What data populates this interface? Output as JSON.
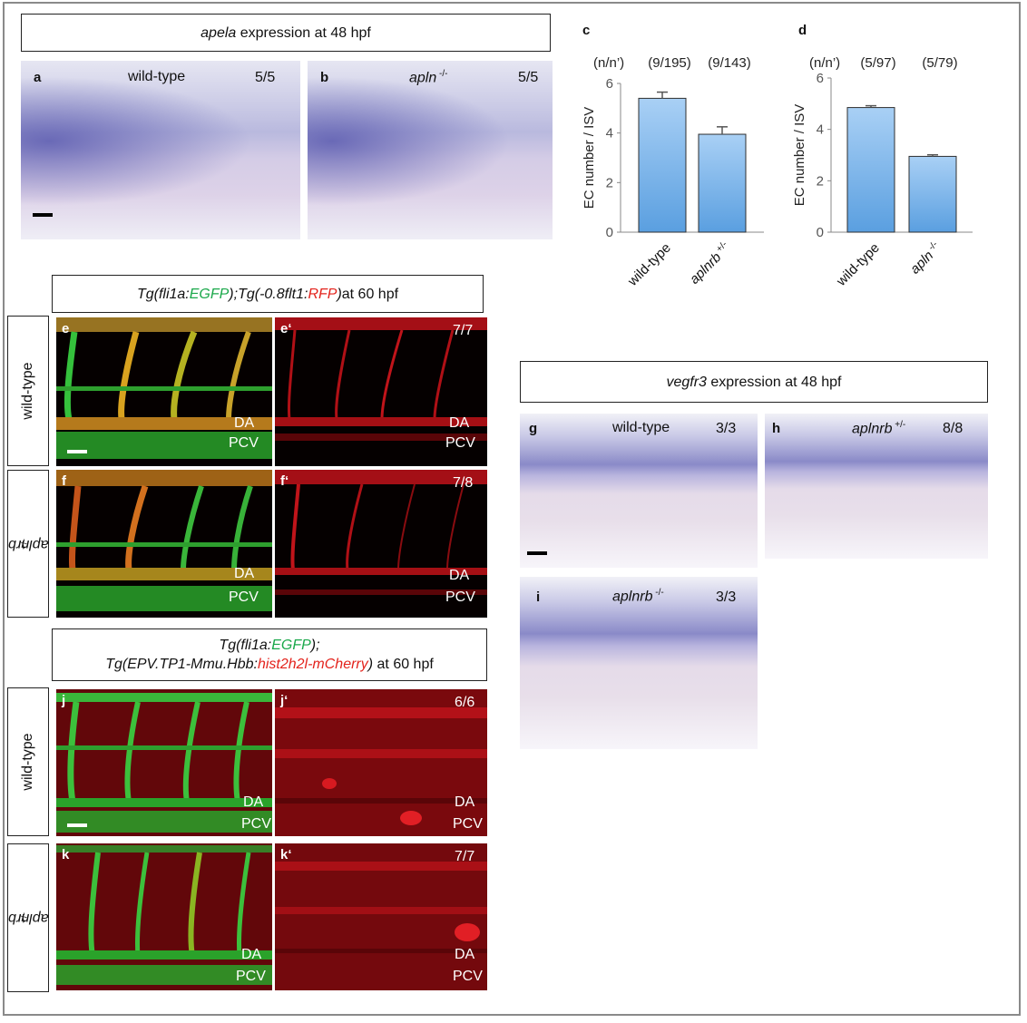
{
  "headers": {
    "apela": {
      "gene": "apela",
      "rest": " expression at 48 hpf"
    },
    "vegfr3": {
      "gene": "vegfr3",
      "rest": " expression at 48 hpf"
    },
    "tg1": {
      "p1": "Tg(fli1a:",
      "p2": "EGFP",
      "p3": ");Tg(-0.8flt1:",
      "p4": "RFP",
      "p5": ")",
      "p6": " at 60 hpf"
    },
    "tg2": {
      "l1a": "Tg(fli1a:",
      "l1b": "EGFP",
      "l1c": ");",
      "l2a": "Tg(EPV.TP1-Mmu.Hbb:",
      "l2b": "hist2h2l-mCherry",
      "l2c": ")",
      "l2d": " at 60 hpf"
    }
  },
  "panels": {
    "a": {
      "letter": "a",
      "label": "wild-type",
      "count": "5/5"
    },
    "b": {
      "letter": "b",
      "label": "apln",
      "sup": " -/-",
      "count": "5/5"
    },
    "e": {
      "letter": "e",
      "da": "DA",
      "pcv": "PCV"
    },
    "e2": {
      "letter": "e‘",
      "count": "7/7",
      "da": "DA",
      "pcv": "PCV"
    },
    "f": {
      "letter": "f",
      "da": "DA",
      "pcv": "PCV"
    },
    "f2": {
      "letter": "f‘",
      "count": "7/8",
      "da": "DA",
      "pcv": "PCV"
    },
    "g": {
      "letter": "g",
      "label": "wild-type",
      "count": "3/3"
    },
    "h": {
      "letter": "h",
      "label": "aplnrb",
      "sup": " +/-",
      "count": "8/8"
    },
    "i": {
      "letter": "i",
      "label": "aplnrb",
      "sup": " -/-",
      "count": "3/3"
    },
    "j": {
      "letter": "j",
      "da": "DA",
      "pcv": "PCV"
    },
    "j2": {
      "letter": "j‘",
      "count": "6/6",
      "da": "DA",
      "pcv": "PCV"
    },
    "k": {
      "letter": "k",
      "da": "DA",
      "pcv": "PCV"
    },
    "k2": {
      "letter": "k‘",
      "count": "7/7",
      "da": "DA",
      "pcv": "PCV"
    }
  },
  "side_labels": {
    "e_row": {
      "text": "wild-type"
    },
    "f_row": {
      "text": "aplnrb",
      "sup": " +/-"
    },
    "j_row": {
      "text": "wild-type"
    },
    "k_row": {
      "text": "aplnrb",
      "sup": " +/-"
    }
  },
  "colors": {
    "bar": "#8ec0ef",
    "bar_edge": "#2f2f2f",
    "green": "#1aa84a",
    "red": "#e3231c"
  },
  "chart_data": [
    {
      "type": "bar",
      "panel": "c",
      "nn_header": "(n/n’)",
      "nn": [
        "(9/195)",
        "(9/143)"
      ],
      "categories": [
        "wild-type",
        "aplnrb"
      ],
      "category_sup": [
        "",
        " +/-"
      ],
      "values": [
        5.4,
        3.95
      ],
      "errors": [
        0.25,
        0.3
      ],
      "ylabel": "EC number / ISV",
      "yticks": [
        "0",
        "2",
        "4",
        "6"
      ],
      "ylim": [
        0,
        6
      ]
    },
    {
      "type": "bar",
      "panel": "d",
      "nn_header": "(n/n’)",
      "nn": [
        "(5/97)",
        "(5/79)"
      ],
      "categories": [
        "wild-type",
        "apln"
      ],
      "category_sup": [
        "",
        " -/-"
      ],
      "values": [
        4.85,
        2.95
      ],
      "errors": [
        0.07,
        0.06
      ],
      "ylabel": "EC number / ISV",
      "yticks": [
        "0",
        "2",
        "4",
        "6"
      ],
      "ylim": [
        0,
        6
      ]
    }
  ]
}
